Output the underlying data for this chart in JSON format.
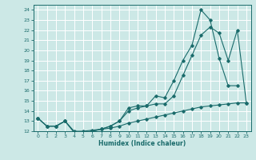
{
  "title": "",
  "xlabel": "Humidex (Indice chaleur)",
  "ylabel": "",
  "background_color": "#cce8e6",
  "line_color": "#1a6b6b",
  "grid_color": "#ffffff",
  "xlim": [
    -0.5,
    23.5
  ],
  "ylim": [
    12,
    24.5
  ],
  "xticks": [
    0,
    1,
    2,
    3,
    4,
    5,
    6,
    7,
    8,
    9,
    10,
    11,
    12,
    13,
    14,
    15,
    16,
    17,
    18,
    19,
    20,
    21,
    22,
    23
  ],
  "yticks": [
    12,
    13,
    14,
    15,
    16,
    17,
    18,
    19,
    20,
    21,
    22,
    23,
    24
  ],
  "series": [
    {
      "x": [
        0,
        1,
        2,
        3,
        4,
        5,
        6,
        7,
        8,
        9,
        10,
        11,
        12,
        13,
        14,
        15,
        16,
        17,
        18,
        19,
        20,
        21,
        22
      ],
      "y": [
        13.3,
        12.5,
        12.5,
        13.0,
        11.9,
        11.9,
        12.0,
        12.2,
        12.5,
        13.0,
        14.3,
        14.5,
        14.5,
        15.5,
        15.3,
        17.0,
        19.0,
        20.5,
        24.0,
        23.0,
        19.2,
        16.5,
        16.5
      ]
    },
    {
      "x": [
        0,
        1,
        2,
        3,
        4,
        5,
        6,
        7,
        8,
        9,
        10,
        11,
        12,
        13,
        14,
        15,
        16,
        17,
        18,
        19,
        20,
        21,
        22,
        23
      ],
      "y": [
        13.3,
        12.5,
        12.5,
        13.0,
        11.9,
        11.9,
        12.0,
        12.2,
        12.5,
        13.0,
        14.0,
        14.3,
        14.5,
        14.7,
        14.7,
        15.5,
        17.5,
        19.5,
        21.5,
        22.3,
        21.7,
        19.0,
        22.0,
        14.8
      ]
    },
    {
      "x": [
        0,
        1,
        2,
        3,
        4,
        5,
        6,
        7,
        8,
        9,
        10,
        11,
        12,
        13,
        14,
        15,
        16,
        17,
        18,
        19,
        20,
        21,
        22,
        23
      ],
      "y": [
        13.3,
        12.5,
        12.5,
        13.0,
        12.0,
        12.0,
        12.1,
        12.2,
        12.3,
        12.5,
        12.8,
        13.0,
        13.2,
        13.4,
        13.6,
        13.8,
        14.0,
        14.2,
        14.4,
        14.5,
        14.6,
        14.7,
        14.8,
        14.8
      ]
    }
  ]
}
